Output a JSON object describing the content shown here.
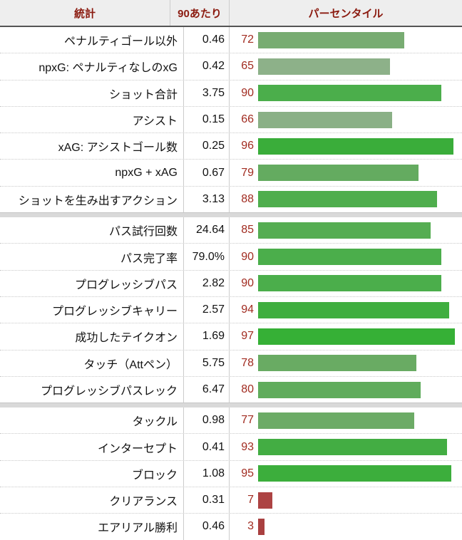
{
  "table": {
    "headers": {
      "stat": "統計",
      "per90": "90あたり",
      "percentile": "パーセンタイル"
    },
    "header_text_color": "#8b1b10",
    "header_bg": "#eeeeee",
    "percentile_number_color": "#a12b20",
    "groups": [
      {
        "rows": [
          {
            "label": "ペナルティゴール以外",
            "value": "0.46",
            "pct": 72,
            "color": "#78ac72"
          },
          {
            "label": "npxG: ペナルティなしのxG",
            "value": "0.42",
            "pct": 65,
            "color": "#8db189"
          },
          {
            "label": "ショット合計",
            "value": "3.75",
            "pct": 90,
            "color": "#4bae4b"
          },
          {
            "label": "アシスト",
            "value": "0.15",
            "pct": 66,
            "color": "#8ab086"
          },
          {
            "label": "xAG: アシストゴール数",
            "value": "0.25",
            "pct": 96,
            "color": "#3aad3a"
          },
          {
            "label": "npxG + xAG",
            "value": "0.67",
            "pct": 79,
            "color": "#64ab60"
          },
          {
            "label": "ショットを生み出すアクション",
            "value": "3.13",
            "pct": 88,
            "color": "#4fae4d"
          }
        ]
      },
      {
        "rows": [
          {
            "label": "パス試行回数",
            "value": "24.64",
            "pct": 85,
            "color": "#55ad52"
          },
          {
            "label": "パス完了率",
            "value": "79.0%",
            "pct": 90,
            "color": "#4bae4b"
          },
          {
            "label": "プログレッシブパス",
            "value": "2.82",
            "pct": 90,
            "color": "#4bae4b"
          },
          {
            "label": "プログレッシブキャリー",
            "value": "2.57",
            "pct": 94,
            "color": "#3fae3f"
          },
          {
            "label": "成功したテイクオン",
            "value": "1.69",
            "pct": 97,
            "color": "#36b036"
          },
          {
            "label": "タッチ（Attペン）",
            "value": "5.75",
            "pct": 78,
            "color": "#69ab63"
          },
          {
            "label": "プログレッシブパスレック",
            "value": "6.47",
            "pct": 80,
            "color": "#60ac5c"
          }
        ]
      },
      {
        "rows": [
          {
            "label": "タックル",
            "value": "0.98",
            "pct": 77,
            "color": "#6cab66"
          },
          {
            "label": "インターセプト",
            "value": "0.41",
            "pct": 93,
            "color": "#43ad43"
          },
          {
            "label": "ブロック",
            "value": "1.08",
            "pct": 95,
            "color": "#3cae3c"
          },
          {
            "label": "クリアランス",
            "value": "0.31",
            "pct": 7,
            "color": "#ad4343"
          },
          {
            "label": "エアリアル勝利",
            "value": "0.46",
            "pct": 3,
            "color": "#a94040"
          }
        ]
      }
    ]
  },
  "chart_data": {
    "type": "bar",
    "orientation": "horizontal",
    "title": "",
    "columns": [
      "統計",
      "90あたり",
      "パーセンタイル"
    ],
    "categories": [
      "ペナルティゴール以外",
      "npxG: ペナルティなしのxG",
      "ショット合計",
      "アシスト",
      "xAG: アシストゴール数",
      "npxG + xAG",
      "ショットを生み出すアクション",
      "パス試行回数",
      "パス完了率",
      "プログレッシブパス",
      "プログレッシブキャリー",
      "成功したテイクオン",
      "タッチ（Attペン）",
      "プログレッシブパスレック",
      "タックル",
      "インターセプト",
      "ブロック",
      "クリアランス",
      "エアリアル勝利"
    ],
    "series": [
      {
        "name": "90あたり",
        "values": [
          0.46,
          0.42,
          3.75,
          0.15,
          0.25,
          0.67,
          3.13,
          24.64,
          "79.0%",
          2.82,
          2.57,
          1.69,
          5.75,
          6.47,
          0.98,
          0.41,
          1.08,
          0.31,
          0.46
        ]
      },
      {
        "name": "パーセンタイル",
        "values": [
          72,
          65,
          90,
          66,
          96,
          79,
          88,
          85,
          90,
          90,
          94,
          97,
          78,
          80,
          77,
          93,
          95,
          7,
          3
        ]
      }
    ],
    "xlim": [
      0,
      100
    ],
    "grid": false,
    "legend_position": "none",
    "bar_color_rule": "green saturation increases with percentile; low percentiles (7, 3) are brick red",
    "group_breaks_after_index": [
      6,
      13
    ]
  }
}
